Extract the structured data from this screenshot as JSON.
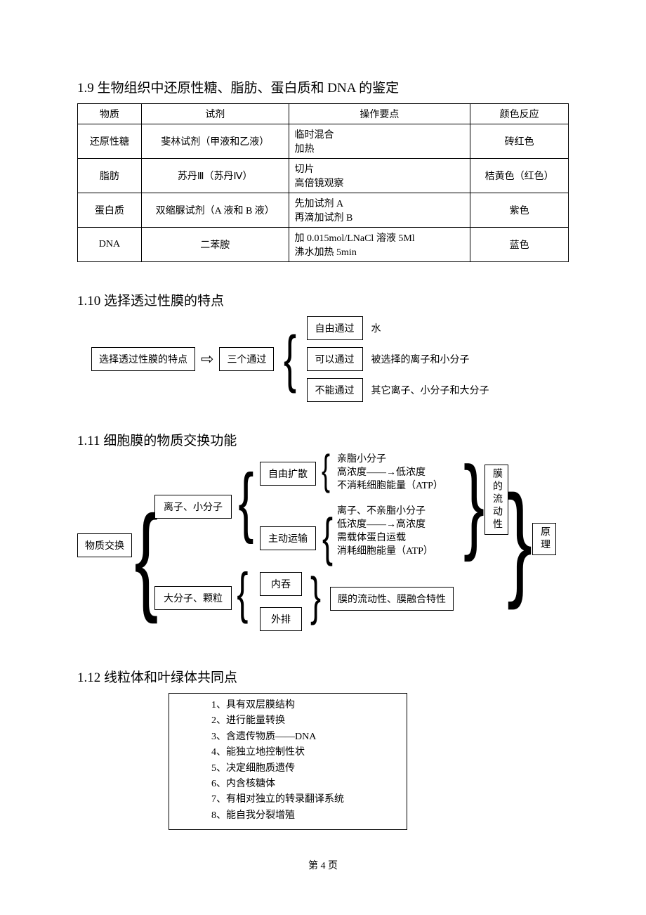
{
  "s19": {
    "title": "1.9 生物组织中还原性糖、脂肪、蛋白质和 DNA 的鉴定",
    "headers": [
      "物质",
      "试剂",
      "操作要点",
      "颜色反应"
    ],
    "rows": [
      {
        "c0": "还原性糖",
        "c1": "斐林试剂（甲液和乙液）",
        "c2": "临时混合\n加热",
        "c3": "砖红色"
      },
      {
        "c0": "脂肪",
        "c1": "苏丹Ⅲ（苏丹Ⅳ）",
        "c2": "切片\n高倍镜观察",
        "c3": "桔黄色（红色）"
      },
      {
        "c0": "蛋白质",
        "c1": "双缩脲试剂（A 液和 B 液）",
        "c2": "先加试剂 A\n再滴加试剂 B",
        "c3": "紫色"
      },
      {
        "c0": "DNA",
        "c1": "二苯胺",
        "c2": "加 0.015mol/LNaCl 溶液 5Ml\n沸水加热 5min",
        "c3": "蓝色"
      }
    ],
    "col_align": [
      "center",
      "center",
      "left",
      "center"
    ]
  },
  "s110": {
    "title": "1.10 选择透过性膜的特点",
    "root": "选择透过性膜的特点",
    "mid": "三个通过",
    "items": [
      {
        "box": "自由通过",
        "desc": "水"
      },
      {
        "box": "可以通过",
        "desc": "被选择的离子和小分子"
      },
      {
        "box": "不能通过",
        "desc": "其它离子、小分子和大分子"
      }
    ]
  },
  "s111": {
    "title": "1.11 细胞膜的物质交换功能",
    "root": "物质交换",
    "b1": "离子、小分子",
    "b2": "大分子、颗粒",
    "c1": "自由扩散",
    "c2": "主动运输",
    "c3": "内吞",
    "c4": "外排",
    "t1a": "亲脂小分子",
    "t1b": "高浓度——→低浓度",
    "t1c": "不消耗细胞能量（ATP）",
    "t2a": "离子、不亲脂小分子",
    "t2b": "低浓度——→高浓度",
    "t2c": "需载体蛋白运载",
    "t2d": "消耗细胞能量（ATP）",
    "t3": "膜的流动性、膜融合特性",
    "side": "膜的流动性",
    "side2": "原理"
  },
  "s112": {
    "title": "1.12 线粒体和叶绿体共同点",
    "items": [
      "1、具有双层膜结构",
      "2、进行能量转换",
      "3、含遗传物质——DNA",
      "4、能独立地控制性状",
      "5、决定细胞质遗传",
      "6、内含核糖体",
      "7、有相对独立的转录翻译系统",
      "8、能自我分裂增殖"
    ]
  },
  "footer": "第 4 页",
  "colors": {
    "text": "#000000",
    "bg": "#ffffff",
    "border": "#000000"
  }
}
